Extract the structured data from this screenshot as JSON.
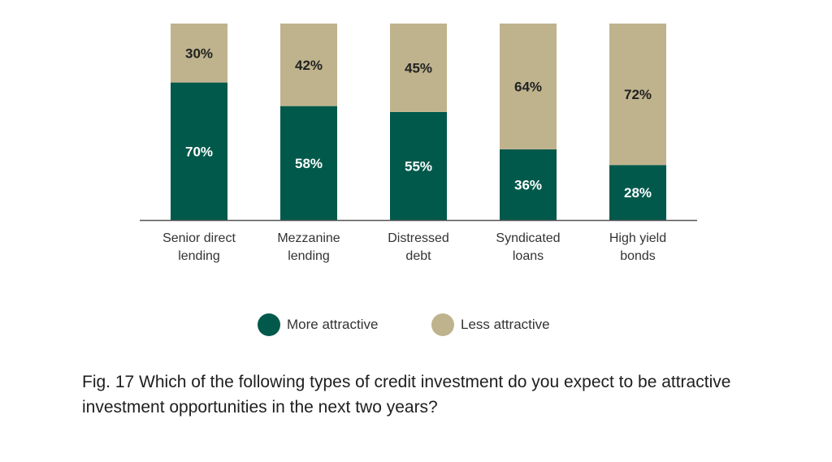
{
  "chart_data": {
    "type": "bar",
    "stacked": true,
    "categories": [
      [
        "Senior direct",
        "lending"
      ],
      [
        "Mezzanine",
        "lending"
      ],
      [
        "Distressed",
        "debt"
      ],
      [
        "Syndicated",
        "loans"
      ],
      [
        "High yield",
        "bonds"
      ]
    ],
    "series": [
      {
        "name": "More attractive",
        "color": "#00594b",
        "label_color": "#ffffff",
        "values": [
          70,
          58,
          55,
          36,
          28
        ],
        "labels": [
          "70%",
          "58%",
          "55%",
          "36%",
          "28%"
        ]
      },
      {
        "name": "Less attractive",
        "color": "#bfb38d",
        "label_color": "#222222",
        "values": [
          30,
          42,
          45,
          64,
          72
        ],
        "labels": [
          "30%",
          "42%",
          "45%",
          "64%",
          "72%"
        ]
      }
    ],
    "ylim": [
      0,
      100
    ],
    "grid": false,
    "legend_position": "bottom-center",
    "baseline_color": "#555555"
  },
  "legend": {
    "items": [
      {
        "label": "More attractive",
        "color": "#00594b"
      },
      {
        "label": "Less attractive",
        "color": "#bfb38d"
      }
    ]
  },
  "caption": "Fig. 17 Which of the following types of credit investment do you expect to be attractive investment opportunities in the next two years?"
}
